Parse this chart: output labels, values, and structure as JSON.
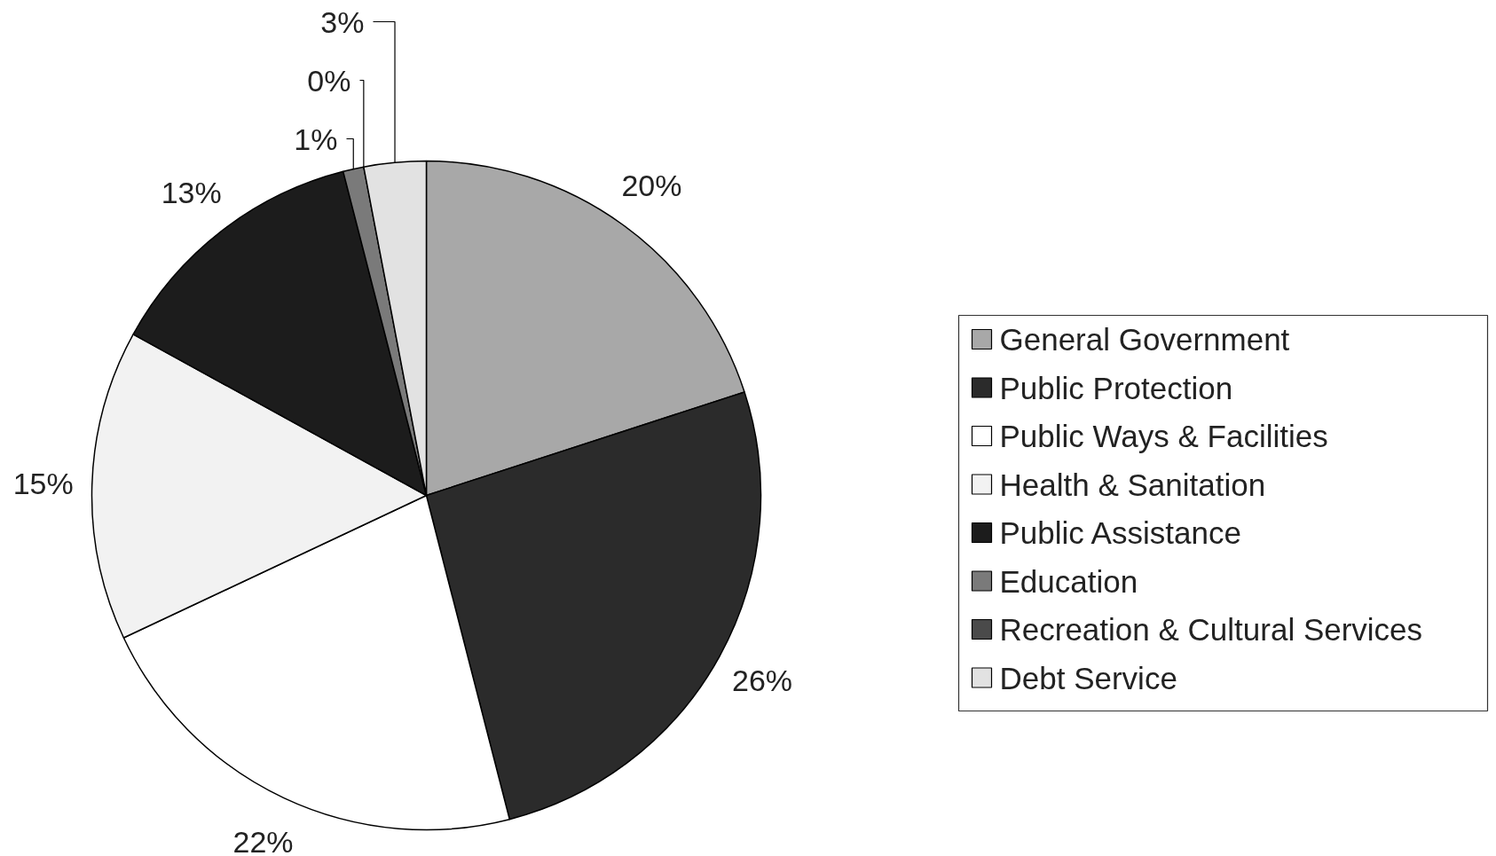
{
  "chart_data": {
    "type": "pie",
    "categories": [
      "General Government",
      "Public Protection",
      "Public Ways & Facilities",
      "Health & Sanitation",
      "Public Assistance",
      "Education",
      "Recreation & Cultural Services",
      "Debt Service"
    ],
    "values": [
      20,
      26,
      22,
      15,
      13,
      1,
      0,
      3
    ],
    "colors": [
      "#a8a8a8",
      "#2b2b2b",
      "#ffffff",
      "#f2f2f2",
      "#1c1c1c",
      "#7a7a7a",
      "#4a4a4a",
      "#e2e2e2"
    ],
    "value_labels": [
      "20%",
      "26%",
      "22%",
      "15%",
      "13%",
      "1%",
      "0%",
      "3%"
    ],
    "legend": "right"
  }
}
